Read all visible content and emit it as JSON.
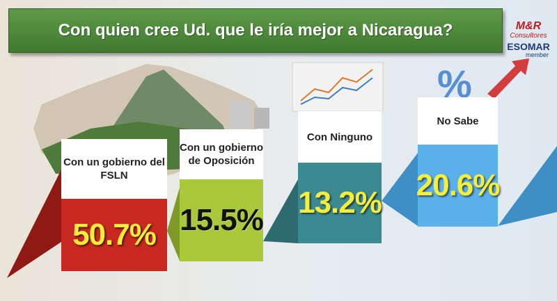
{
  "title": "Con quien cree Ud. que le iría mejor a Nicaragua?",
  "logo": {
    "line1": "M&R",
    "line2": "Consultores",
    "line3": "ESOMAR",
    "line4": "member"
  },
  "chart_data": {
    "type": "bar",
    "categories": [
      "Con un gobierno del FSLN",
      "Con un gobierno de Oposición",
      "Con Ninguno",
      "No Sabe"
    ],
    "values": [
      50.7,
      15.5,
      13.2,
      20.6
    ],
    "labels": [
      "50.7%",
      "15.5%",
      "13.2%",
      "20.6%"
    ],
    "colors": [
      "#c7281f",
      "#a9c83a",
      "#3c8a91",
      "#5ab0e8"
    ],
    "unit": "%"
  }
}
